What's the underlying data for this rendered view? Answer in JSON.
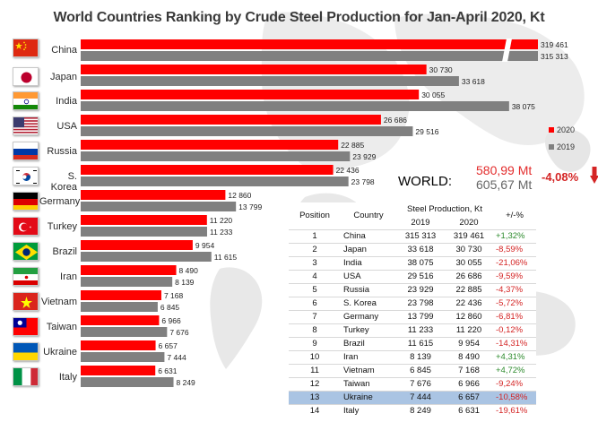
{
  "title": "World Countries Ranking by Crude Steel Production for Jan-April 2020, Kt",
  "colors": {
    "bar_2020": "#ff0000",
    "bar_2019": "#808080",
    "positive": "#2e8b2e",
    "negative": "#d42424",
    "highlight_row": "#aac4e3"
  },
  "legend": {
    "items": [
      {
        "label": "2020",
        "color": "#ff0000"
      },
      {
        "label": "2019",
        "color": "#808080"
      }
    ],
    "placement": "right"
  },
  "world": {
    "label": "WORLD:",
    "v2020": "580,99 Mt",
    "v2019": "605,67 Mt",
    "change": "-4,08%",
    "arrow_icon": "down-arrow-icon"
  },
  "table": {
    "headers": {
      "position": "Position",
      "country": "Country",
      "production": "Steel Production, Kt",
      "y2019": "2019",
      "y2020": "2020",
      "change": "+/-%"
    },
    "rows": [
      {
        "pos": "1",
        "country": "China",
        "v2019": "315 313",
        "v2020": "319 461",
        "change": "+1,32%"
      },
      {
        "pos": "2",
        "country": "Japan",
        "v2019": "33 618",
        "v2020": "30 730",
        "change": "-8,59%"
      },
      {
        "pos": "3",
        "country": "India",
        "v2019": "38 075",
        "v2020": "30 055",
        "change": "-21,06%"
      },
      {
        "pos": "4",
        "country": "USA",
        "v2019": "29 516",
        "v2020": "26 686",
        "change": "-9,59%"
      },
      {
        "pos": "5",
        "country": "Russia",
        "v2019": "23 929",
        "v2020": "22 885",
        "change": "-4,37%"
      },
      {
        "pos": "6",
        "country": "S. Korea",
        "v2019": "23 798",
        "v2020": "22 436",
        "change": "-5,72%"
      },
      {
        "pos": "7",
        "country": "Germany",
        "v2019": "13 799",
        "v2020": "12 860",
        "change": "-6,81%"
      },
      {
        "pos": "8",
        "country": "Turkey",
        "v2019": "11 233",
        "v2020": "11 220",
        "change": "-0,12%"
      },
      {
        "pos": "9",
        "country": "Brazil",
        "v2019": "11 615",
        "v2020": "9 954",
        "change": "-14,31%"
      },
      {
        "pos": "10",
        "country": "Iran",
        "v2019": "8 139",
        "v2020": "8 490",
        "change": "+4,31%"
      },
      {
        "pos": "11",
        "country": "Vietnam",
        "v2019": "6 845",
        "v2020": "7 168",
        "change": "+4,72%"
      },
      {
        "pos": "12",
        "country": "Taiwan",
        "v2019": "7 676",
        "v2020": "6 966",
        "change": "-9,24%"
      },
      {
        "pos": "13",
        "country": "Ukraine",
        "v2019": "7 444",
        "v2020": "6 657",
        "change": "-10,58%"
      },
      {
        "pos": "14",
        "country": "Italy",
        "v2019": "8 249",
        "v2020": "6 631",
        "change": "-19,61%"
      }
    ]
  },
  "chart_data": {
    "type": "bar",
    "orientation": "horizontal",
    "title": "World Countries Ranking by Crude Steel Production for Jan-April 2020, Kt",
    "categories": [
      "China",
      "Japan",
      "India",
      "USA",
      "Russia",
      "S. Korea",
      "Germany",
      "Turkey",
      "Brazil",
      "Iran",
      "Vietnam",
      "Taiwan",
      "Ukraine",
      "Italy"
    ],
    "series": [
      {
        "name": "2020",
        "values": [
          319461,
          30730,
          30055,
          26686,
          22885,
          22436,
          12860,
          11220,
          9954,
          8490,
          7168,
          6966,
          6657,
          6631
        ],
        "labels": [
          "319 461",
          "30 730",
          "30 055",
          "26 686",
          "22 885",
          "22 436",
          "12 860",
          "11 220",
          "9 954",
          "8 490",
          "7 168",
          "6 966",
          "6 657",
          "6 631"
        ]
      },
      {
        "name": "2019",
        "values": [
          315313,
          33618,
          38075,
          29516,
          23929,
          23798,
          13799,
          11233,
          11615,
          8139,
          6845,
          7676,
          7444,
          8249
        ],
        "labels": [
          "315 313",
          "33 618",
          "38 075",
          "29 516",
          "23 929",
          "23 798",
          "13 799",
          "11 233",
          "11 615",
          "8 139",
          "6 845",
          "7 676",
          "7 444",
          "8 249"
        ]
      }
    ],
    "axis_break": true,
    "grid": false,
    "legend": "right"
  }
}
